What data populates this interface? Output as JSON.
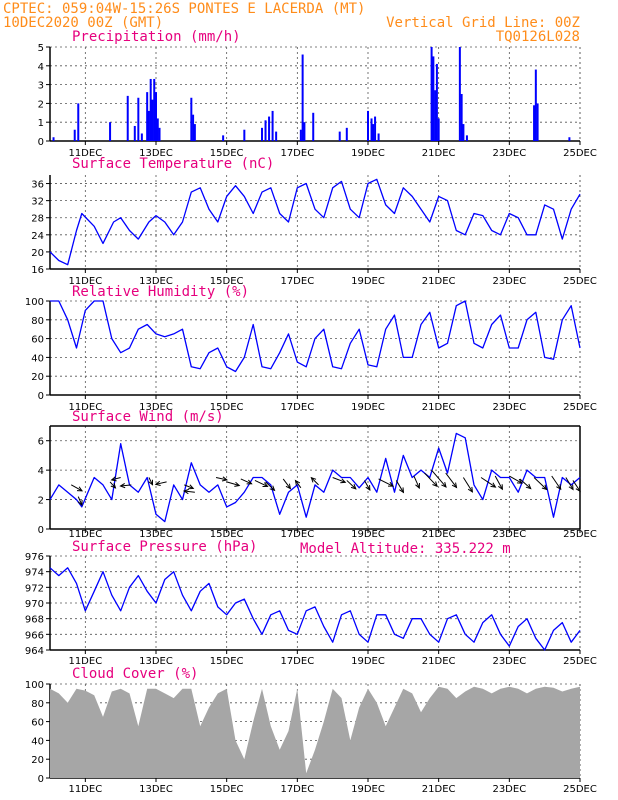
{
  "header": {
    "line1": "CPTEC:   059:04W-15:26S  PONTES E LACERDA (MT)",
    "line2": "10DEC2020 00Z (GMT)",
    "grid_note": "Vertical Grid Line: 00Z",
    "code": "TQ0126L028",
    "header_color": "#ff8c1a",
    "title_color": "#e6007e",
    "series_color": "#0000ff"
  },
  "x_axis": {
    "start_day": 10.0,
    "end_day": 25.0,
    "ticks": [
      {
        "day": 11,
        "label": "11DEC"
      },
      {
        "day": 13,
        "label": "13DEC"
      },
      {
        "day": 15,
        "label": "15DEC"
      },
      {
        "day": 17,
        "label": "17DEC"
      },
      {
        "day": 19,
        "label": "19DEC"
      },
      {
        "day": 21,
        "label": "21DEC"
      },
      {
        "day": 23,
        "label": "23DEC"
      },
      {
        "day": 25,
        "label": "25DEC"
      }
    ]
  },
  "model_altitude": "Model Altitude: 335.222 m",
  "chart_data": [
    {
      "type": "bar",
      "title": "Precipitation (mm/h)",
      "ylim": [
        0,
        5
      ],
      "yticks": [
        0,
        1,
        2,
        3,
        4,
        5
      ],
      "bars": [
        [
          10.1,
          0.2
        ],
        [
          10.7,
          0.6
        ],
        [
          10.8,
          2.0
        ],
        [
          11.7,
          1.0
        ],
        [
          12.2,
          2.4
        ],
        [
          12.4,
          0.8
        ],
        [
          12.5,
          2.3
        ],
        [
          12.6,
          0.4
        ],
        [
          12.75,
          2.6
        ],
        [
          12.8,
          1.6
        ],
        [
          12.85,
          3.3
        ],
        [
          12.9,
          2.2
        ],
        [
          12.95,
          3.3
        ],
        [
          13.0,
          2.6
        ],
        [
          13.05,
          1.2
        ],
        [
          13.1,
          0.7
        ],
        [
          14.0,
          2.3
        ],
        [
          14.05,
          1.4
        ],
        [
          14.1,
          0.9
        ],
        [
          14.9,
          0.3
        ],
        [
          15.5,
          0.6
        ],
        [
          16.0,
          0.7
        ],
        [
          16.1,
          1.1
        ],
        [
          16.2,
          1.3
        ],
        [
          16.3,
          1.6
        ],
        [
          16.4,
          0.5
        ],
        [
          17.1,
          0.6
        ],
        [
          17.15,
          4.6
        ],
        [
          17.2,
          1.0
        ],
        [
          17.45,
          1.5
        ],
        [
          18.2,
          0.5
        ],
        [
          18.4,
          0.7
        ],
        [
          19.0,
          1.6
        ],
        [
          19.1,
          1.2
        ],
        [
          19.15,
          0.9
        ],
        [
          19.2,
          1.3
        ],
        [
          19.3,
          0.4
        ],
        [
          20.8,
          5.0
        ],
        [
          20.85,
          4.5
        ],
        [
          20.9,
          2.7
        ],
        [
          20.95,
          4.1
        ],
        [
          21.0,
          1.2
        ],
        [
          21.6,
          5.0
        ],
        [
          21.65,
          2.5
        ],
        [
          21.7,
          0.9
        ],
        [
          21.8,
          0.3
        ],
        [
          23.7,
          1.9
        ],
        [
          23.75,
          3.8
        ],
        [
          23.8,
          2.0
        ],
        [
          24.7,
          0.2
        ]
      ]
    },
    {
      "type": "line",
      "title": "Surface Temperature (nC)",
      "ylim": [
        16,
        38
      ],
      "yticks": [
        16,
        20,
        24,
        28,
        32,
        36
      ],
      "x": [
        10.0,
        10.25,
        10.5,
        10.75,
        10.9,
        11.25,
        11.5,
        11.8,
        12.0,
        12.25,
        12.5,
        12.8,
        13.0,
        13.25,
        13.5,
        13.75,
        14.0,
        14.25,
        14.5,
        14.75,
        15.0,
        15.25,
        15.5,
        15.75,
        16.0,
        16.25,
        16.5,
        16.75,
        17.0,
        17.25,
        17.5,
        17.75,
        18.0,
        18.25,
        18.5,
        18.75,
        19.0,
        19.25,
        19.5,
        19.75,
        20.0,
        20.25,
        20.5,
        20.75,
        21.0,
        21.25,
        21.5,
        21.75,
        22.0,
        22.25,
        22.5,
        22.75,
        23.0,
        23.25,
        23.5,
        23.75,
        24.0,
        24.25,
        24.5,
        24.75,
        25.0
      ],
      "y": [
        20,
        18,
        17,
        25,
        29,
        26,
        22,
        27,
        28,
        25,
        23,
        27,
        28.5,
        27,
        24,
        27,
        34,
        35,
        30,
        27,
        33,
        35.5,
        33,
        29,
        34,
        35,
        29,
        27,
        35,
        36,
        30,
        28,
        35,
        36.5,
        30,
        28,
        36,
        37,
        31,
        29,
        35,
        33,
        30,
        27,
        33,
        32,
        25,
        24,
        29,
        28.5,
        25,
        24,
        29,
        28,
        24,
        24,
        31,
        30,
        23,
        30,
        33.5
      ]
    },
    {
      "type": "line",
      "title": "Relative Humidity (%)",
      "ylim": [
        0,
        100
      ],
      "yticks": [
        0,
        20,
        40,
        60,
        80,
        100
      ],
      "x": [
        10.0,
        10.25,
        10.5,
        10.75,
        11.0,
        11.25,
        11.5,
        11.75,
        12.0,
        12.25,
        12.5,
        12.75,
        13.0,
        13.25,
        13.5,
        13.75,
        14.0,
        14.25,
        14.5,
        14.75,
        15.0,
        15.25,
        15.5,
        15.75,
        16.0,
        16.25,
        16.5,
        16.75,
        17.0,
        17.25,
        17.5,
        17.75,
        18.0,
        18.25,
        18.5,
        18.75,
        19.0,
        19.25,
        19.5,
        19.75,
        20.0,
        20.25,
        20.5,
        20.75,
        21.0,
        21.25,
        21.5,
        21.75,
        22.0,
        22.25,
        22.5,
        22.75,
        23.0,
        23.25,
        23.5,
        23.75,
        24.0,
        24.25,
        24.5,
        24.75,
        25.0
      ],
      "y": [
        100,
        100,
        80,
        50,
        90,
        100,
        100,
        60,
        45,
        50,
        70,
        75,
        65,
        62,
        65,
        70,
        30,
        28,
        45,
        50,
        30,
        25,
        40,
        75,
        30,
        28,
        45,
        65,
        35,
        30,
        60,
        70,
        30,
        28,
        55,
        70,
        32,
        30,
        70,
        85,
        40,
        40,
        75,
        88,
        50,
        55,
        95,
        100,
        55,
        50,
        75,
        85,
        50,
        50,
        80,
        88,
        40,
        38,
        80,
        95,
        50
      ]
    },
    {
      "type": "line",
      "title": "Surface Wind (m/s)",
      "ylim": [
        0,
        7
      ],
      "yticks": [
        0,
        2,
        4,
        6
      ],
      "x": [
        10.0,
        10.25,
        10.5,
        10.75,
        10.9,
        11.25,
        11.5,
        11.75,
        12.0,
        12.25,
        12.5,
        12.75,
        13.0,
        13.25,
        13.5,
        13.75,
        14.0,
        14.25,
        14.5,
        14.75,
        15.0,
        15.25,
        15.5,
        15.75,
        16.0,
        16.25,
        16.5,
        16.75,
        17.0,
        17.25,
        17.5,
        17.75,
        18.0,
        18.25,
        18.5,
        18.75,
        19.0,
        19.25,
        19.5,
        19.75,
        20.0,
        20.25,
        20.5,
        20.75,
        21.0,
        21.25,
        21.5,
        21.75,
        22.0,
        22.25,
        22.5,
        22.75,
        23.0,
        23.25,
        23.5,
        23.75,
        24.0,
        24.25,
        24.5,
        24.75,
        25.0
      ],
      "y": [
        2.0,
        3.0,
        2.5,
        2.0,
        1.5,
        3.5,
        3.0,
        2.0,
        5.8,
        3.0,
        2.5,
        3.5,
        1.0,
        0.5,
        3.0,
        2.0,
        4.5,
        3.0,
        2.5,
        3.0,
        1.5,
        1.8,
        2.5,
        3.5,
        3.5,
        3.0,
        1.0,
        2.5,
        3.0,
        0.8,
        3.0,
        2.5,
        4.0,
        3.5,
        3.5,
        2.8,
        3.5,
        2.5,
        4.8,
        2.5,
        5.0,
        3.5,
        4.0,
        3.5,
        5.5,
        3.8,
        6.5,
        6.2,
        3.0,
        2.0,
        4.0,
        3.5,
        3.5,
        2.5,
        4.0,
        3.5,
        3.5,
        0.8,
        3.5,
        3.0,
        3.5
      ],
      "arrows": [
        [
          10.6,
          3.0,
          0.6,
          -0.5
        ],
        [
          10.8,
          2.2,
          0.2,
          -0.7
        ],
        [
          11.7,
          3.2,
          0.3,
          -0.5
        ],
        [
          12.0,
          3.5,
          -0.5,
          -0.2
        ],
        [
          12.3,
          3.0,
          -0.6,
          -0.1
        ],
        [
          12.8,
          3.5,
          0.2,
          -0.6
        ],
        [
          13.3,
          3.2,
          -0.6,
          -0.2
        ],
        [
          13.8,
          3.0,
          0.5,
          -0.3
        ],
        [
          14.1,
          2.5,
          -0.6,
          0.1
        ],
        [
          14.7,
          3.5,
          0.6,
          -0.2
        ],
        [
          15.0,
          3.2,
          0.7,
          -0.3
        ],
        [
          15.4,
          3.4,
          0.6,
          -0.4
        ],
        [
          15.8,
          3.3,
          0.7,
          -0.5
        ],
        [
          16.1,
          3.2,
          0.5,
          -0.7
        ],
        [
          16.6,
          3.4,
          0.4,
          -0.8
        ],
        [
          17.1,
          2.8,
          -0.3,
          0.6
        ],
        [
          17.6,
          3.0,
          -0.4,
          0.6
        ],
        [
          18.0,
          3.5,
          0.7,
          -0.4
        ],
        [
          18.4,
          3.3,
          0.5,
          -0.7
        ],
        [
          18.9,
          3.3,
          0.3,
          -0.8
        ],
        [
          19.3,
          3.4,
          0.8,
          -0.6
        ],
        [
          19.8,
          3.3,
          0.4,
          -1.0
        ],
        [
          20.3,
          3.6,
          0.3,
          -1.0
        ],
        [
          20.6,
          3.8,
          0.7,
          -1.1
        ],
        [
          20.8,
          4.0,
          0.8,
          -1.4
        ],
        [
          21.2,
          3.8,
          0.6,
          -1.2
        ],
        [
          21.7,
          3.5,
          0.5,
          -1.2
        ],
        [
          22.2,
          3.5,
          0.8,
          -0.8
        ],
        [
          22.6,
          3.6,
          0.4,
          -1.1
        ],
        [
          23.0,
          3.6,
          0.7,
          -0.6
        ],
        [
          23.3,
          3.4,
          0.6,
          -0.8
        ],
        [
          23.7,
          3.5,
          0.7,
          -1.0
        ],
        [
          24.2,
          3.6,
          0.5,
          -1.1
        ],
        [
          24.6,
          3.5,
          0.4,
          -1.0
        ],
        [
          24.8,
          3.3,
          0.4,
          -0.9
        ]
      ]
    },
    {
      "type": "line",
      "title": "Surface Pressure (hPa)",
      "ylim": [
        964,
        976
      ],
      "yticks": [
        964,
        966,
        968,
        970,
        972,
        974,
        976
      ],
      "x": [
        10.0,
        10.25,
        10.5,
        10.75,
        11.0,
        11.25,
        11.5,
        11.75,
        12.0,
        12.25,
        12.5,
        12.75,
        13.0,
        13.25,
        13.5,
        13.75,
        14.0,
        14.25,
        14.5,
        14.75,
        15.0,
        15.25,
        15.5,
        15.75,
        16.0,
        16.25,
        16.5,
        16.75,
        17.0,
        17.25,
        17.5,
        17.75,
        18.0,
        18.25,
        18.5,
        18.75,
        19.0,
        19.25,
        19.5,
        19.75,
        20.0,
        20.25,
        20.5,
        20.75,
        21.0,
        21.25,
        21.5,
        21.75,
        22.0,
        22.25,
        22.5,
        22.75,
        23.0,
        23.25,
        23.5,
        23.75,
        24.0,
        24.25,
        24.5,
        24.75,
        25.0
      ],
      "y": [
        974.5,
        973.5,
        974.5,
        972.5,
        969.0,
        971.5,
        974.0,
        971.0,
        969.0,
        972.0,
        973.5,
        971.5,
        970.0,
        973.0,
        974.0,
        971.0,
        969.0,
        971.5,
        972.5,
        969.5,
        968.5,
        970.0,
        970.5,
        968.0,
        966.0,
        968.5,
        969.0,
        966.5,
        966.0,
        969.0,
        969.5,
        967.0,
        965.0,
        968.5,
        969.0,
        966.0,
        965.0,
        968.5,
        968.5,
        966.0,
        965.5,
        968.0,
        968.0,
        966.0,
        965.0,
        968.0,
        968.5,
        966.0,
        965.0,
        967.5,
        968.5,
        966.0,
        964.5,
        967.0,
        968.0,
        965.5,
        964.0,
        966.5,
        967.5,
        965.0,
        966.5
      ]
    },
    {
      "type": "area",
      "title": "Cloud Cover (%)",
      "ylim": [
        0,
        100
      ],
      "yticks": [
        0,
        20,
        40,
        60,
        80,
        100
      ],
      "x": [
        10.0,
        10.25,
        10.5,
        10.75,
        11.0,
        11.25,
        11.5,
        11.75,
        12.0,
        12.25,
        12.5,
        12.75,
        13.0,
        13.25,
        13.5,
        13.75,
        14.0,
        14.25,
        14.5,
        14.75,
        15.0,
        15.25,
        15.5,
        15.75,
        16.0,
        16.25,
        16.5,
        16.75,
        17.0,
        17.25,
        17.5,
        17.75,
        18.0,
        18.25,
        18.5,
        18.75,
        19.0,
        19.25,
        19.5,
        19.75,
        20.0,
        20.25,
        20.5,
        20.75,
        21.0,
        21.25,
        21.5,
        21.75,
        22.0,
        22.25,
        22.5,
        22.75,
        23.0,
        23.25,
        23.5,
        23.75,
        24.0,
        24.25,
        24.5,
        24.75,
        25.0
      ],
      "y": [
        95,
        90,
        80,
        95,
        93,
        88,
        65,
        92,
        95,
        90,
        55,
        95,
        95,
        90,
        85,
        95,
        95,
        55,
        75,
        90,
        95,
        40,
        20,
        60,
        95,
        55,
        30,
        50,
        95,
        5,
        30,
        60,
        95,
        85,
        40,
        75,
        95,
        80,
        55,
        75,
        95,
        90,
        70,
        85,
        97,
        95,
        85,
        92,
        97,
        95,
        90,
        95,
        97,
        95,
        90,
        95,
        97,
        96,
        92,
        95,
        97
      ]
    }
  ]
}
